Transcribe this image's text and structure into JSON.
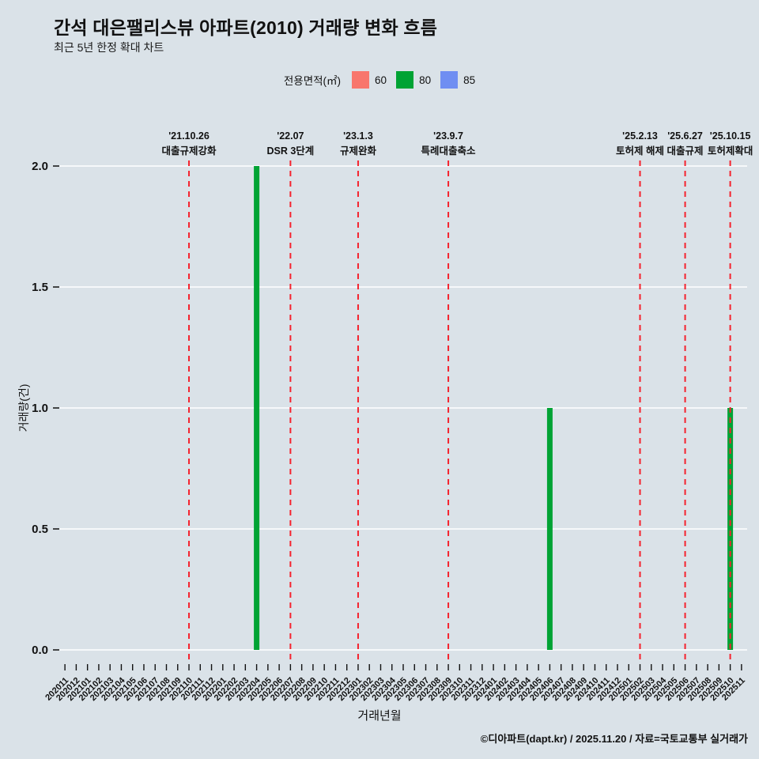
{
  "chart_data": {
    "type": "bar",
    "title": "간석 대은팰리스뷰 아파트(2010) 거래량 변화 흐름",
    "subtitle": "최근 5년 한정 확대 차트",
    "legend_title": "전용면적(㎡)",
    "xlabel": "거래년월",
    "ylabel": "거래량(건)",
    "ylim": [
      0,
      2
    ],
    "yticks": [
      {
        "v": 0,
        "label": "0.0"
      },
      {
        "v": 0.5,
        "label": "0.5"
      },
      {
        "v": 1,
        "label": "1.0"
      },
      {
        "v": 1.5,
        "label": "1.5"
      },
      {
        "v": 2,
        "label": "2.0"
      }
    ],
    "categories": [
      "202011",
      "202012",
      "202101",
      "202102",
      "202103",
      "202104",
      "202105",
      "202106",
      "202107",
      "202108",
      "202109",
      "202110",
      "202111",
      "202112",
      "202201",
      "202202",
      "202203",
      "202204",
      "202205",
      "202206",
      "202207",
      "202208",
      "202209",
      "202210",
      "202211",
      "202212",
      "202301",
      "202302",
      "202303",
      "202304",
      "202305",
      "202306",
      "202307",
      "202308",
      "202309",
      "202310",
      "202311",
      "202312",
      "202401",
      "202402",
      "202403",
      "202404",
      "202405",
      "202406",
      "202407",
      "202408",
      "202409",
      "202410",
      "202411",
      "202412",
      "202501",
      "202502",
      "202503",
      "202504",
      "202505",
      "202506",
      "202507",
      "202508",
      "202509",
      "202510",
      "202511"
    ],
    "series": [
      {
        "name": "60",
        "color": "#f8766d",
        "values": {}
      },
      {
        "name": "80",
        "color": "#00a334",
        "values": {
          "202204": 2,
          "202406": 1,
          "202510": 1
        }
      },
      {
        "name": "85",
        "color": "#6f8ef2",
        "values": {}
      }
    ],
    "events": [
      {
        "cat": "202110",
        "date": "'21.10.26",
        "label": "대출규제강화"
      },
      {
        "cat": "202207",
        "date": "'22.07",
        "label": "DSR 3단계"
      },
      {
        "cat": "202301",
        "date": "'23.1.3",
        "label": "규제완화"
      },
      {
        "cat": "202309",
        "date": "'23.9.7",
        "label": "특례대출축소"
      },
      {
        "cat": "202502",
        "date": "'25.2.13",
        "label": "토허제 해제"
      },
      {
        "cat": "202506",
        "date": "'25.6.27",
        "label": "대출규제"
      },
      {
        "cat": "202510",
        "date": "'25.10.15",
        "label": "토허제확대"
      }
    ],
    "event_line_color": "#f5222d",
    "grid_color": "#ffffff",
    "background_color": "#dae2e8",
    "footer": "©디아파트(dapt.kr) / 2025.11.20 / 자료=국토교통부 실거래가"
  }
}
